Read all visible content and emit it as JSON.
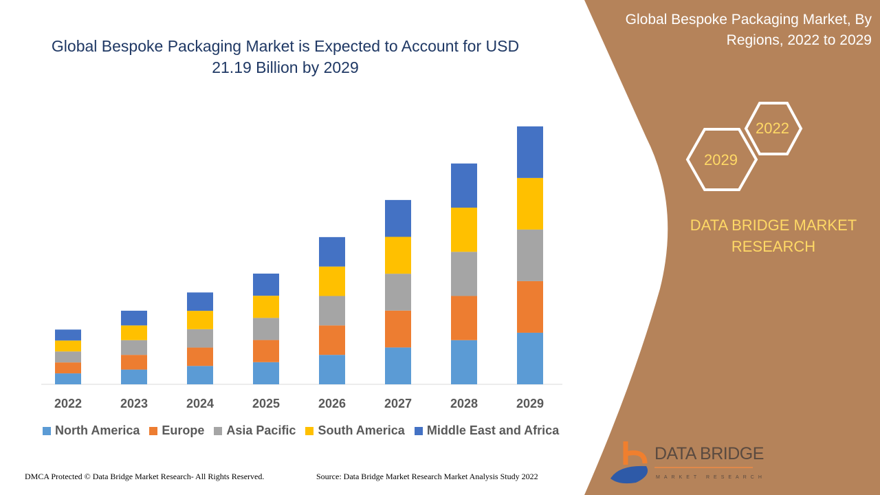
{
  "header": {
    "title": "Global Bespoke Packaging Market is Expected to Account for USD 21.19 Billion by 2029"
  },
  "side_panel": {
    "title": "Global Bespoke Packaging Market, By Regions, 2022 to 2029",
    "hex_start": "2022",
    "hex_end": "2029",
    "brand": "DATA BRIDGE MARKET RESEARCH",
    "logo_text": "DATA BRIDGE",
    "panel_color": "#b5835a"
  },
  "footer": {
    "copyright": "DMCA Protected © Data Bridge Market Research- All Rights Reserved.",
    "source": "Source: Data Bridge Market Research Market Analysis Study 2022"
  },
  "chart_data": {
    "type": "bar",
    "stacked": true,
    "title": "Global Bespoke Packaging Market is Expected to Account for USD 21.19 Billion by 2029",
    "xlabel": "",
    "ylabel": "",
    "ylim": [
      0,
      21.19
    ],
    "grid": false,
    "legend_position": "bottom",
    "categories": [
      "2022",
      "2023",
      "2024",
      "2025",
      "2026",
      "2027",
      "2028",
      "2029"
    ],
    "series": [
      {
        "name": "North America",
        "color": "#5b9bd5",
        "values": [
          0.9,
          1.21,
          1.51,
          1.82,
          2.42,
          3.03,
          3.63,
          4.24
        ]
      },
      {
        "name": "Europe",
        "color": "#ed7d31",
        "values": [
          0.9,
          1.21,
          1.51,
          1.82,
          2.42,
          3.03,
          3.63,
          4.24
        ]
      },
      {
        "name": "Asia Pacific",
        "color": "#a5a5a5",
        "values": [
          0.9,
          1.21,
          1.51,
          1.82,
          2.42,
          3.03,
          3.63,
          4.24
        ]
      },
      {
        "name": "South America",
        "color": "#ffc000",
        "values": [
          0.9,
          1.21,
          1.51,
          1.82,
          2.42,
          3.03,
          3.63,
          4.24
        ]
      },
      {
        "name": "Middle East and Africa",
        "color": "#4472c4",
        "values": [
          0.9,
          1.21,
          1.51,
          1.82,
          2.42,
          3.03,
          3.63,
          4.24
        ]
      }
    ]
  }
}
